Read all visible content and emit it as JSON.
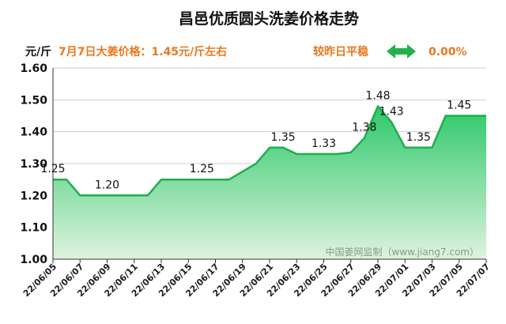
{
  "header": {
    "unit": "元/斤",
    "today_price": "7月7日大姜价格：1.45元/斤左右",
    "compare": "较昨日平稳",
    "change": "0.00%"
  },
  "watermark": "中国姜网监制（www.jiang7.com）",
  "colors": {
    "line": "#1fae4e",
    "fill_top": "#2ec86a",
    "fill_bottom": "#dff3df",
    "accent_orange": "#e8781e",
    "arrow": "#22b14c"
  },
  "chart_data": {
    "type": "area",
    "title": "昌邑优质圆头洗姜价格走势",
    "ylabel": "元/斤",
    "xlabel": "",
    "ylim": [
      1.0,
      1.6
    ],
    "yticks": [
      "1.00",
      "1.10",
      "1.20",
      "1.30",
      "1.40",
      "1.50",
      "1.60"
    ],
    "x_tick_labels": [
      "22/06/05",
      "22/06/07",
      "22/06/09",
      "22/06/11",
      "22/06/13",
      "22/06/15",
      "22/06/17",
      "22/06/19",
      "22/06/21",
      "22/06/23",
      "22/06/25",
      "22/06/27",
      "22/06/29",
      "22/07/01",
      "22/07/03",
      "22/07/05",
      "22/07/07"
    ],
    "dates": [
      "22/06/05",
      "22/06/06",
      "22/06/07",
      "22/06/08",
      "22/06/09",
      "22/06/10",
      "22/06/11",
      "22/06/12",
      "22/06/13",
      "22/06/14",
      "22/06/15",
      "22/06/16",
      "22/06/17",
      "22/06/18",
      "22/06/19",
      "22/06/20",
      "22/06/21",
      "22/06/22",
      "22/06/23",
      "22/06/24",
      "22/06/25",
      "22/06/26",
      "22/06/27",
      "22/06/28",
      "22/06/29",
      "22/06/30",
      "22/07/01",
      "22/07/02",
      "22/07/03",
      "22/07/04",
      "22/07/05",
      "22/07/06",
      "22/07/07"
    ],
    "values": [
      1.25,
      1.25,
      1.2,
      1.2,
      1.2,
      1.2,
      1.2,
      1.2,
      1.25,
      1.25,
      1.25,
      1.25,
      1.25,
      1.25,
      1.275,
      1.3,
      1.35,
      1.35,
      1.33,
      1.33,
      1.33,
      1.33,
      1.335,
      1.38,
      1.48,
      1.43,
      1.35,
      1.35,
      1.35,
      1.45,
      1.45,
      1.45,
      1.45
    ],
    "data_labels": [
      {
        "index": 0,
        "text": "1.25"
      },
      {
        "index": 4,
        "text": "1.20"
      },
      {
        "index": 11,
        "text": "1.25"
      },
      {
        "index": 17,
        "text": "1.35"
      },
      {
        "index": 20,
        "text": "1.33"
      },
      {
        "index": 23,
        "text": "1.38"
      },
      {
        "index": 24,
        "text": "1.48"
      },
      {
        "index": 25,
        "text": "1.43"
      },
      {
        "index": 27,
        "text": "1.35"
      },
      {
        "index": 30,
        "text": "1.45"
      }
    ]
  }
}
